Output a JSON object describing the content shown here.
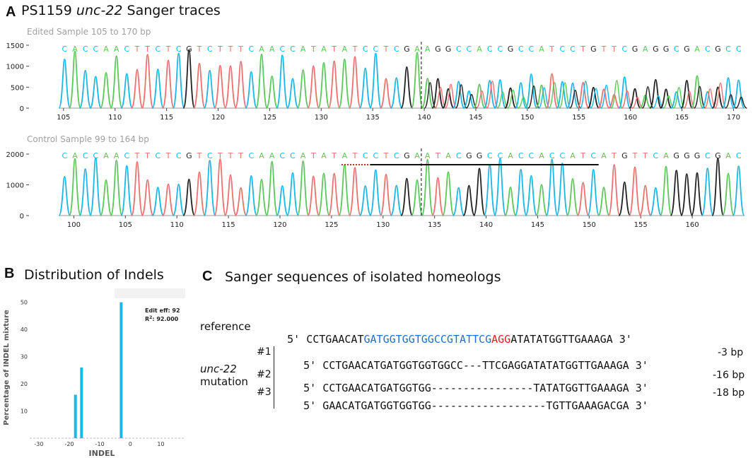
{
  "panel_a": {
    "letter": "A",
    "title_prefix": "PS1159 ",
    "title_gene": "unc-22",
    "title_suffix": " Sanger traces",
    "edited": {
      "caption": "Edited Sample 105 to 170 bp",
      "bases": "CACCAACTTCTCGTCTTTCAACCATATATCCTCGAAGGCCACCGCCATCCTGTTCGAGGCGACGCC",
      "y_ticks": [
        "1500",
        "1000",
        "500",
        "0"
      ],
      "x_ticks": [
        "105",
        "110",
        "115",
        "120",
        "125",
        "130",
        "135",
        "140",
        "145",
        "150",
        "155",
        "160",
        "165",
        "170"
      ],
      "cut_position": 139.5,
      "x_range": [
        104.6,
        171
      ],
      "y_range": [
        0,
        1500
      ]
    },
    "control": {
      "caption": "Control Sample 99 to 164 bp",
      "bases": "CACCAACTTCTCGTCTTTCAACCATATATCCTCGAATACGGCCACCACCATCATGTTCAGGGCGAC",
      "y_ticks": [
        "2000",
        "1000",
        "0"
      ],
      "x_ticks": [
        "100",
        "105",
        "110",
        "115",
        "120",
        "125",
        "130",
        "135",
        "140",
        "145",
        "150",
        "155",
        "160"
      ],
      "cut_position": 133.5,
      "x_range": [
        98.6,
        165
      ],
      "y_range": [
        0,
        2000
      ]
    },
    "base_colors": {
      "A": "#5cc85c",
      "C": "#1ab8e8",
      "G": "#222222",
      "T": "#f07070"
    }
  },
  "panel_b": {
    "letter": "B",
    "title": "Distribution of Indels",
    "legend_line1": "Edit eff: 92",
    "legend_line2_prefix": "R",
    "legend_line2_sup": "2",
    "legend_line2_suffix": ": 92.000",
    "chart_data": {
      "type": "bar",
      "x": [
        -18,
        -16,
        -3
      ],
      "values": [
        16,
        26,
        50
      ],
      "xlabel": "INDEL",
      "ylabel": "Percentage of INDEL mixture",
      "xlim": [
        -33,
        18
      ],
      "ylim": [
        0,
        52
      ],
      "x_ticks": [
        "-30",
        "-20",
        "-10",
        "0",
        "10"
      ],
      "y_ticks": [
        "10",
        "20",
        "30",
        "40",
        "50"
      ],
      "bar_color": "#1ab8e8"
    }
  },
  "panel_c": {
    "letter": "C",
    "title": "Sanger sequences of isolated homeologs",
    "reference": {
      "label": "reference",
      "five": "5'",
      "seq_pre": "CCTGAACAT",
      "seq_guide": "GATGGTGGTGGCCGTATTCG",
      "seq_pam": "AGG",
      "seq_post": "ATATATGGTTGAAAGA",
      "three": "3'"
    },
    "group_label_gene": "unc-22",
    "group_label_word": "mutation",
    "mutations": [
      {
        "num": "#1",
        "five": "5'",
        "seq": "CCTGAACATGATGGTGGTGGCC---TTCGAGGATATATGGTTGAAAGA",
        "three": "3'",
        "bp": "-3 bp"
      },
      {
        "num": "#2",
        "five": "5'",
        "seq": "CCTGAACATGATGGTGG----------------TATATGGTTGAAAGA",
        "three": "3'",
        "bp": "-16 bp"
      },
      {
        "num": "#3",
        "five": "5'",
        "seq": "GAACATGATGGTGGTGG------------------TGTTGAAAGACGA",
        "three": "3'",
        "bp": "-18 bp"
      }
    ]
  }
}
